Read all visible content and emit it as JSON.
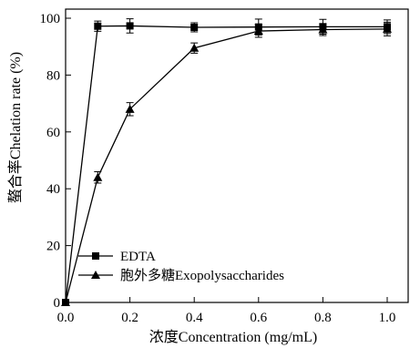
{
  "chart_data": {
    "type": "line",
    "title": "",
    "xlabel": "浓度Concentration (mg/mL)",
    "ylabel": "螯合率Chelation rate (%)",
    "xlim": [
      0.0,
      1.0
    ],
    "ylim": [
      0,
      100
    ],
    "x_ticks": [
      "0.0",
      "0.2",
      "0.4",
      "0.6",
      "0.8",
      "1.0"
    ],
    "y_ticks": [
      "0",
      "20",
      "40",
      "60",
      "80",
      "100"
    ],
    "grid": false,
    "legend_position": "bottom-left",
    "series": [
      {
        "name": "EDTA",
        "marker": "square",
        "x": [
          0.0,
          0.1,
          0.2,
          0.4,
          0.6,
          0.8,
          1.0
        ],
        "y": [
          0,
          97.2,
          97.3,
          96.8,
          96.9,
          97.0,
          97.0
        ],
        "err": [
          0,
          1.8,
          2.5,
          1.6,
          2.8,
          2.6,
          2.4
        ]
      },
      {
        "name": "胞外多糖Exopolysaccharides",
        "marker": "triangle",
        "x": [
          0.0,
          0.1,
          0.2,
          0.4,
          0.6,
          0.8,
          1.0
        ],
        "y": [
          0,
          44.0,
          68.0,
          89.5,
          95.5,
          96.0,
          96.2
        ],
        "err": [
          0,
          2.0,
          2.3,
          1.8,
          2.2,
          2.1,
          2.4
        ]
      }
    ]
  }
}
